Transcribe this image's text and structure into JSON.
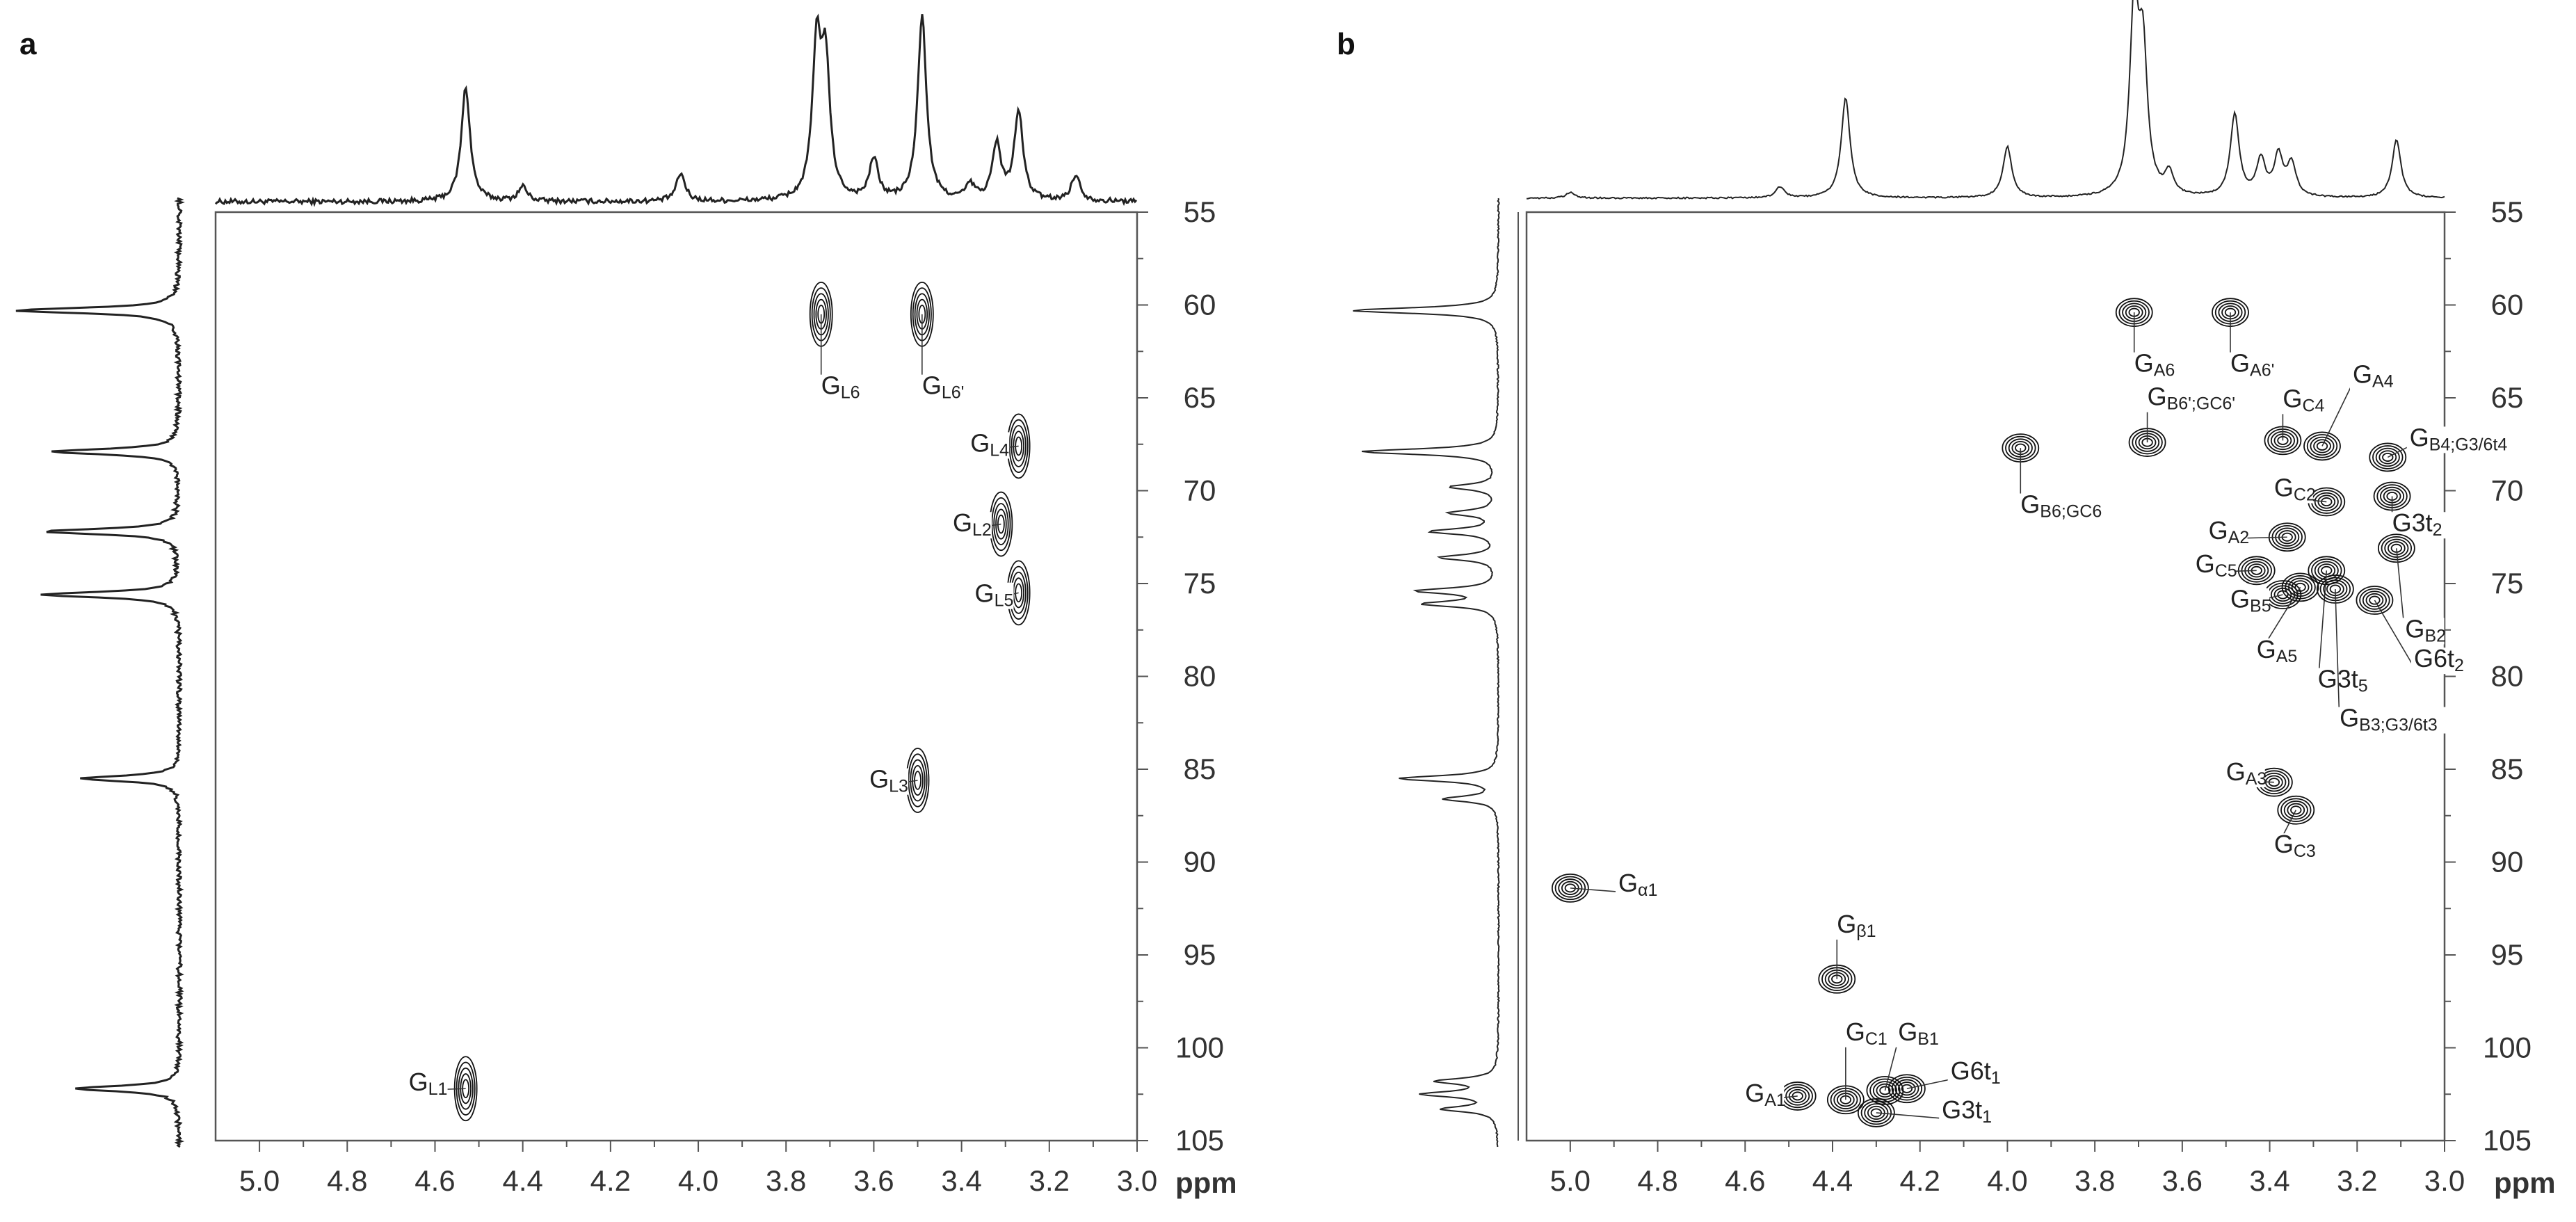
{
  "chart_data": [
    {
      "type": "scatter",
      "panel": "a",
      "xlabel": "ppm",
      "ylabel": "",
      "xlim": [
        5.1,
        3.0
      ],
      "ylim": [
        55,
        105
      ],
      "x_ticks": [
        "5.0",
        "4.8",
        "4.6",
        "4.4",
        "4.2",
        "4.0",
        "3.8",
        "3.6",
        "3.4",
        "3.2",
        "3.0"
      ],
      "y_ticks": [
        "55",
        "60",
        "65",
        "70",
        "75",
        "80",
        "85",
        "90",
        "95",
        "100",
        "105"
      ],
      "cross_peaks": [
        {
          "name": "GL1",
          "label": "G",
          "sub": "L1",
          "x": 4.53,
          "y": 102.2,
          "labelx": 4.66,
          "labely": 102.3
        },
        {
          "name": "GL6",
          "label": "G",
          "sub": "L6",
          "x": 3.72,
          "y": 60.5,
          "labelx": 3.72,
          "labely": 64.8
        },
        {
          "name": "GL6'",
          "label": "G",
          "sub": "L6'",
          "x": 3.49,
          "y": 60.5,
          "labelx": 3.49,
          "labely": 64.8
        },
        {
          "name": "GL4",
          "label": "G",
          "sub": "L4",
          "x": 3.27,
          "y": 67.6,
          "labelx": 3.38,
          "labely": 67.9
        },
        {
          "name": "GL2",
          "label": "G",
          "sub": "L2",
          "x": 3.31,
          "y": 71.8,
          "labelx": 3.42,
          "labely": 72.2
        },
        {
          "name": "GL5",
          "label": "G",
          "sub": "L5",
          "x": 3.27,
          "y": 75.5,
          "labelx": 3.37,
          "labely": 76.0
        },
        {
          "name": "GL3",
          "label": "G",
          "sub": "L3",
          "x": 3.5,
          "y": 85.6,
          "labelx": 3.61,
          "labely": 86.0
        }
      ],
      "proton_peaks": [
        {
          "x": 4.53,
          "h": 0.62
        },
        {
          "x": 4.4,
          "h": 0.08
        },
        {
          "x": 4.04,
          "h": 0.15
        },
        {
          "x": 3.73,
          "h": 0.8
        },
        {
          "x": 3.71,
          "h": 0.7
        },
        {
          "x": 3.6,
          "h": 0.22
        },
        {
          "x": 3.49,
          "h": 1.0
        },
        {
          "x": 3.38,
          "h": 0.08
        },
        {
          "x": 3.32,
          "h": 0.3
        },
        {
          "x": 3.27,
          "h": 0.48
        },
        {
          "x": 3.14,
          "h": 0.14
        }
      ],
      "carbon_peaks": [
        {
          "y": 60.3,
          "h": 1.0
        },
        {
          "y": 67.9,
          "h": 0.78
        },
        {
          "y": 72.2,
          "h": 0.82
        },
        {
          "y": 75.6,
          "h": 0.84
        },
        {
          "y": 85.5,
          "h": 0.6
        },
        {
          "y": 102.2,
          "h": 0.64
        }
      ]
    },
    {
      "type": "scatter",
      "panel": "b",
      "xlabel": "ppm",
      "ylabel": "",
      "xlim": [
        5.1,
        3.0
      ],
      "ylim": [
        55,
        105
      ],
      "x_ticks": [
        "5.0",
        "4.8",
        "4.6",
        "4.4",
        "4.2",
        "4.0",
        "3.8",
        "3.6",
        "3.4",
        "3.2",
        "3.0"
      ],
      "y_ticks": [
        "55",
        "60",
        "65",
        "70",
        "75",
        "80",
        "85",
        "90",
        "95",
        "100",
        "105"
      ],
      "cross_peaks": [
        {
          "name": "Gα1",
          "label": "G",
          "sub": "α1",
          "x": 5.0,
          "y": 91.4,
          "labelx": 4.89,
          "labely": 91.6
        },
        {
          "name": "Gβ1",
          "label": "G",
          "sub": "β1",
          "x": 4.39,
          "y": 96.3,
          "labelx": 4.39,
          "labely": 93.8
        },
        {
          "name": "GA1",
          "label": "G",
          "sub": "A1",
          "x": 4.48,
          "y": 102.6,
          "labelx": 4.6,
          "labely": 102.9
        },
        {
          "name": "GC1",
          "label": "G",
          "sub": "C1",
          "x": 4.37,
          "y": 102.8,
          "labelx": 4.37,
          "labely": 99.6
        },
        {
          "name": "GB1",
          "label": "G",
          "sub": "B1",
          "x": 4.28,
          "y": 102.3,
          "labelx": 4.25,
          "labely": 99.6
        },
        {
          "name": "G6t1",
          "label": "G6t",
          "sub": "1",
          "x": 4.23,
          "y": 102.2,
          "labelx": 4.13,
          "labely": 101.7
        },
        {
          "name": "G3t1",
          "label": "G3t",
          "sub": "1",
          "x": 4.3,
          "y": 103.5,
          "labelx": 4.15,
          "labely": 103.8
        },
        {
          "name": "GB6;GC6",
          "label": "G",
          "sub": "B6;GC6",
          "x": 3.97,
          "y": 67.7,
          "labelx": 3.97,
          "labely": 71.2
        },
        {
          "name": "GA6",
          "label": "G",
          "sub": "A6",
          "x": 3.71,
          "y": 60.4,
          "labelx": 3.71,
          "labely": 63.6
        },
        {
          "name": "GA6'",
          "label": "G",
          "sub": "A6'",
          "x": 3.49,
          "y": 60.4,
          "labelx": 3.49,
          "labely": 63.6
        },
        {
          "name": "GB6';GC6'",
          "label": "G",
          "sub": "B6';GC6'",
          "x": 3.68,
          "y": 67.4,
          "labelx": 3.68,
          "labely": 65.4
        },
        {
          "name": "GC4",
          "label": "G",
          "sub": "C4",
          "x": 3.37,
          "y": 67.3,
          "labelx": 3.37,
          "labely": 65.5
        },
        {
          "name": "GA4",
          "label": "G",
          "sub": "A4",
          "x": 3.28,
          "y": 67.6,
          "labelx": 3.21,
          "labely": 64.2
        },
        {
          "name": "GB4;G3/6t4",
          "label": "G",
          "sub": "B4;G3/6t4",
          "x": 3.13,
          "y": 68.2,
          "labelx": 3.08,
          "labely": 67.6
        },
        {
          "name": "GC2",
          "label": "G",
          "sub": "C2",
          "x": 3.27,
          "y": 70.6,
          "labelx": 3.39,
          "labely": 70.3
        },
        {
          "name": "G3t2",
          "label": "G3t",
          "sub": "2",
          "x": 3.12,
          "y": 70.3,
          "labelx": 3.12,
          "labely": 72.2
        },
        {
          "name": "GA2",
          "label": "G",
          "sub": "A2",
          "x": 3.36,
          "y": 72.5,
          "labelx": 3.54,
          "labely": 72.6
        },
        {
          "name": "GC5",
          "label": "G",
          "sub": "C5",
          "x": 3.43,
          "y": 74.3,
          "labelx": 3.57,
          "labely": 74.4
        },
        {
          "name": "GB5",
          "label": "G",
          "sub": "B5",
          "x": 3.37,
          "y": 75.6,
          "labelx": 3.49,
          "labely": 76.3
        },
        {
          "name": "GA5",
          "label": "G",
          "sub": "A5",
          "x": 3.33,
          "y": 75.2,
          "labelx": 3.43,
          "labely": 79.0
        },
        {
          "name": "G3t5",
          "label": "G3t",
          "sub": "5",
          "x": 3.27,
          "y": 74.3,
          "labelx": 3.29,
          "labely": 80.6
        },
        {
          "name": "GB3;G3/6t3",
          "label": "G",
          "sub": "B3;G3/6t3",
          "x": 3.25,
          "y": 75.3,
          "labelx": 3.24,
          "labely": 82.7
        },
        {
          "name": "GB2",
          "label": "G",
          "sub": "B2",
          "x": 3.11,
          "y": 73.1,
          "labelx": 3.09,
          "labely": 77.9
        },
        {
          "name": "G6t2",
          "label": "G6t",
          "sub": "2",
          "x": 3.16,
          "y": 75.9,
          "labelx": 3.07,
          "labely": 79.5
        },
        {
          "name": "GA3",
          "label": "G",
          "sub": "A3",
          "x": 3.39,
          "y": 85.7,
          "labelx": 3.5,
          "labely": 85.6
        },
        {
          "name": "GC3",
          "label": "G",
          "sub": "C3",
          "x": 3.34,
          "y": 87.2,
          "labelx": 3.39,
          "labely": 89.5
        }
      ],
      "proton_peaks": [
        {
          "x": 5.0,
          "h": 0.03
        },
        {
          "x": 4.52,
          "h": 0.06
        },
        {
          "x": 4.37,
          "h": 0.55
        },
        {
          "x": 4.0,
          "h": 0.28
        },
        {
          "x": 3.71,
          "h": 1.0
        },
        {
          "x": 3.69,
          "h": 0.75
        },
        {
          "x": 3.63,
          "h": 0.12
        },
        {
          "x": 3.48,
          "h": 0.45
        },
        {
          "x": 3.42,
          "h": 0.2
        },
        {
          "x": 3.38,
          "h": 0.22
        },
        {
          "x": 3.35,
          "h": 0.18
        },
        {
          "x": 3.11,
          "h": 0.32
        }
      ],
      "carbon_peaks": [
        {
          "y": 60.3,
          "h": 0.92
        },
        {
          "y": 67.9,
          "h": 0.86
        },
        {
          "y": 69.8,
          "h": 0.3
        },
        {
          "y": 71.2,
          "h": 0.3
        },
        {
          "y": 72.2,
          "h": 0.42
        },
        {
          "y": 73.6,
          "h": 0.36
        },
        {
          "y": 75.4,
          "h": 0.5
        },
        {
          "y": 76.1,
          "h": 0.46
        },
        {
          "y": 85.5,
          "h": 0.62
        },
        {
          "y": 86.6,
          "h": 0.34
        },
        {
          "y": 101.8,
          "h": 0.38
        },
        {
          "y": 102.5,
          "h": 0.46
        },
        {
          "y": 103.3,
          "h": 0.34
        }
      ]
    }
  ],
  "panels": [
    {
      "letter": "a",
      "unit": "ppm"
    },
    {
      "letter": "b",
      "unit": "ppm"
    }
  ]
}
